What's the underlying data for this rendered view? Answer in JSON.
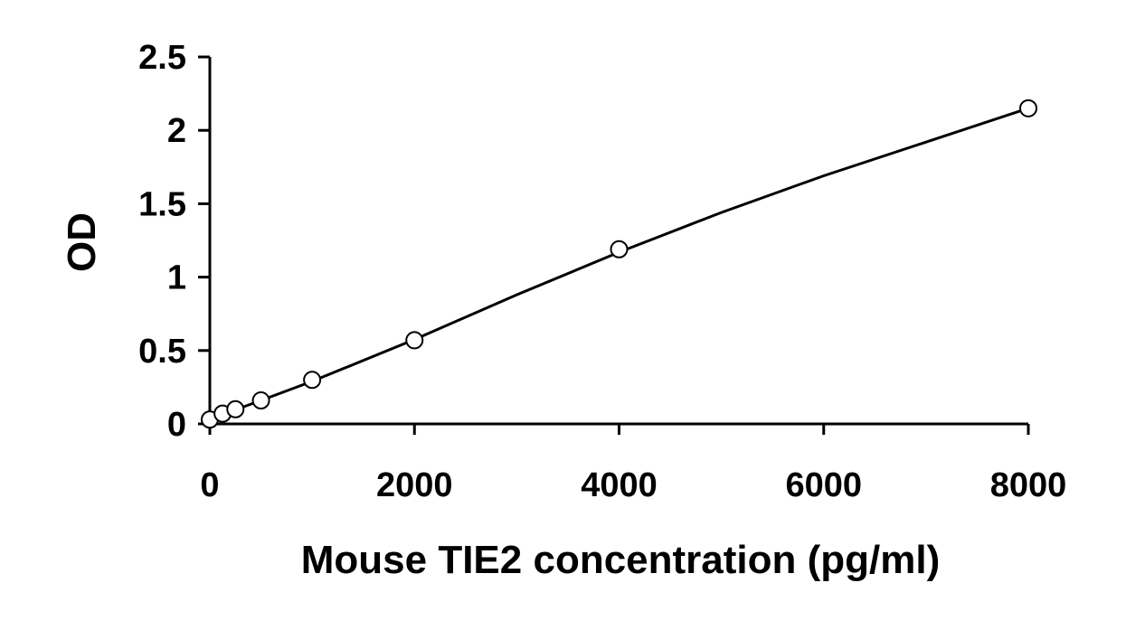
{
  "chart_data": {
    "type": "scatter",
    "title": "",
    "xlabel": "Mouse TIE2 concentration (pg/ml)",
    "ylabel": "OD",
    "xlim": [
      0,
      8000
    ],
    "ylim": [
      0,
      2.5
    ],
    "xticks": [
      0,
      2000,
      4000,
      6000,
      8000
    ],
    "xtick_labels": [
      "0",
      "2000",
      "4000",
      "6000",
      "8000"
    ],
    "yticks": [
      0,
      0.5,
      1,
      1.5,
      2,
      2.5
    ],
    "ytick_labels": [
      "0",
      "0.5",
      "1",
      "1.5",
      "2",
      "2.5"
    ],
    "grid": false,
    "legend": "none",
    "series": [
      {
        "marker": "open-circle",
        "x": [
          0,
          125,
          250,
          500,
          1000,
          2000,
          4000,
          8000
        ],
        "y": [
          0.03,
          0.07,
          0.1,
          0.16,
          0.3,
          0.57,
          1.19,
          2.15
        ]
      }
    ],
    "fit_curve": {
      "type": "smooth",
      "x": [
        0,
        125,
        250,
        500,
        1000,
        2000,
        3000,
        4000,
        5000,
        6000,
        7000,
        8000
      ],
      "y": [
        0.03,
        0.063,
        0.096,
        0.16,
        0.29,
        0.575,
        0.88,
        1.17,
        1.44,
        1.69,
        1.92,
        2.15
      ]
    },
    "colors": {
      "axis": "#000000",
      "line": "#000000",
      "marker_fill": "#ffffff",
      "marker_stroke": "#000000"
    }
  }
}
